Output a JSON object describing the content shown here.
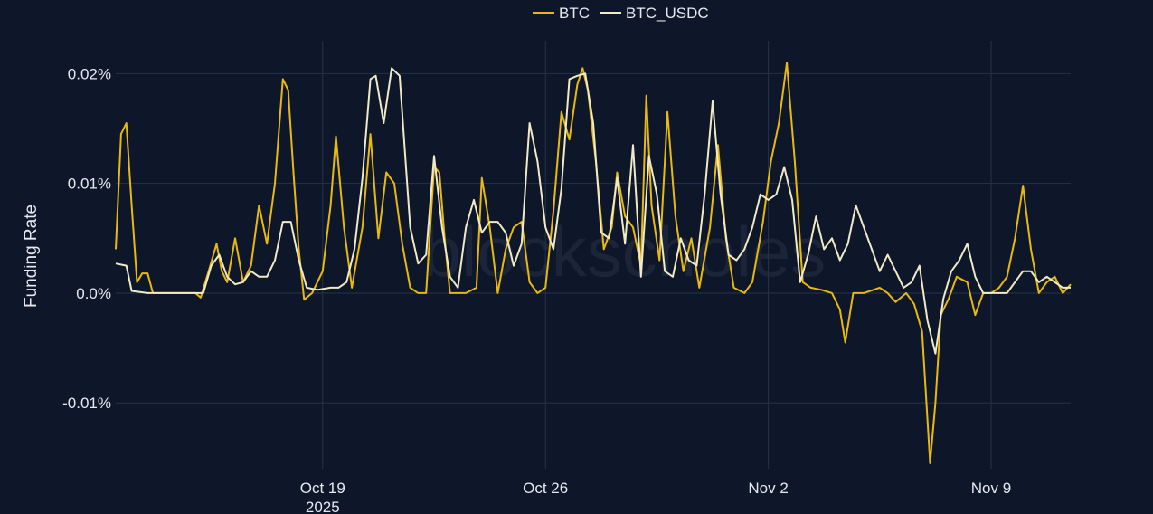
{
  "watermark": "blockscholes",
  "chart_data": {
    "type": "line",
    "title": "",
    "xlabel": "",
    "ylabel": "Funding Rate",
    "x_range": [
      "2025-10-12T12:00",
      "2025-11-11T12:00"
    ],
    "ylim": [
      -0.016,
      0.023
    ],
    "y_unit": "%",
    "y_ticks": [
      {
        "value": 0.02,
        "label": "0.02%"
      },
      {
        "value": 0.01,
        "label": "0.01%"
      },
      {
        "value": 0.0,
        "label": "0.0%"
      },
      {
        "value": -0.01,
        "label": "-0.01%"
      }
    ],
    "x_ticks": [
      {
        "value": "2025-10-19T00:00",
        "label": "Oct 19",
        "sublabel": "2025"
      },
      {
        "value": "2025-10-26T00:00",
        "label": "Oct 26",
        "sublabel": ""
      },
      {
        "value": "2025-11-02T00:00",
        "label": "Nov 2",
        "sublabel": ""
      },
      {
        "value": "2025-11-09T00:00",
        "label": "Nov 9",
        "sublabel": ""
      }
    ],
    "grid": true,
    "legend_position": "top-center",
    "series": [
      {
        "name": "BTC",
        "color": "#e8b90f",
        "points": [
          [
            "2025-10-12T12:00",
            0.004
          ],
          [
            "2025-10-12T16:00",
            0.0145
          ],
          [
            "2025-10-12T20:00",
            0.0155
          ],
          [
            "2025-10-13T00:00",
            0.008
          ],
          [
            "2025-10-13T04:00",
            0.001
          ],
          [
            "2025-10-13T08:00",
            0.0018
          ],
          [
            "2025-10-13T12:00",
            0.0018
          ],
          [
            "2025-10-13T16:00",
            0.0
          ],
          [
            "2025-10-14T00:00",
            0.0
          ],
          [
            "2025-10-14T12:00",
            0.0
          ],
          [
            "2025-10-15T00:00",
            0.0
          ],
          [
            "2025-10-15T04:00",
            -0.0004
          ],
          [
            "2025-10-15T10:00",
            0.002
          ],
          [
            "2025-10-15T16:00",
            0.0045
          ],
          [
            "2025-10-15T20:00",
            0.002
          ],
          [
            "2025-10-16T00:00",
            0.001
          ],
          [
            "2025-10-16T06:00",
            0.005
          ],
          [
            "2025-10-16T12:00",
            0.001
          ],
          [
            "2025-10-16T18:00",
            0.0025
          ],
          [
            "2025-10-17T00:00",
            0.008
          ],
          [
            "2025-10-17T06:00",
            0.0045
          ],
          [
            "2025-10-17T12:00",
            0.01
          ],
          [
            "2025-10-17T18:00",
            0.0195
          ],
          [
            "2025-10-17T22:00",
            0.0185
          ],
          [
            "2025-10-18T02:00",
            0.011
          ],
          [
            "2025-10-18T06:00",
            0.004
          ],
          [
            "2025-10-18T10:00",
            -0.0006
          ],
          [
            "2025-10-18T16:00",
            0.0
          ],
          [
            "2025-10-19T00:00",
            0.002
          ],
          [
            "2025-10-19T06:00",
            0.008
          ],
          [
            "2025-10-19T10:00",
            0.0143
          ],
          [
            "2025-10-19T16:00",
            0.006
          ],
          [
            "2025-10-19T22:00",
            0.0005
          ],
          [
            "2025-10-20T06:00",
            0.006
          ],
          [
            "2025-10-20T12:00",
            0.0145
          ],
          [
            "2025-10-20T18:00",
            0.005
          ],
          [
            "2025-10-21T00:00",
            0.011
          ],
          [
            "2025-10-21T06:00",
            0.01
          ],
          [
            "2025-10-21T12:00",
            0.0045
          ],
          [
            "2025-10-21T18:00",
            0.0005
          ],
          [
            "2025-10-22T00:00",
            0.0
          ],
          [
            "2025-10-22T06:00",
            0.0
          ],
          [
            "2025-10-22T12:00",
            0.0115
          ],
          [
            "2025-10-22T16:00",
            0.011
          ],
          [
            "2025-10-22T20:00",
            0.005
          ],
          [
            "2025-10-23T00:00",
            0.0
          ],
          [
            "2025-10-23T12:00",
            0.0
          ],
          [
            "2025-10-23T20:00",
            0.0005
          ],
          [
            "2025-10-24T00:00",
            0.0105
          ],
          [
            "2025-10-24T06:00",
            0.006
          ],
          [
            "2025-10-24T12:00",
            0.0
          ],
          [
            "2025-10-24T18:00",
            0.004
          ],
          [
            "2025-10-25T00:00",
            0.006
          ],
          [
            "2025-10-25T06:00",
            0.0065
          ],
          [
            "2025-10-25T12:00",
            0.001
          ],
          [
            "2025-10-25T18:00",
            0.0
          ],
          [
            "2025-10-26T00:00",
            0.0005
          ],
          [
            "2025-10-26T06:00",
            0.0075
          ],
          [
            "2025-10-26T12:00",
            0.0165
          ],
          [
            "2025-10-26T18:00",
            0.014
          ],
          [
            "2025-10-27T00:00",
            0.019
          ],
          [
            "2025-10-27T04:00",
            0.0205
          ],
          [
            "2025-10-27T08:00",
            0.0185
          ],
          [
            "2025-10-27T14:00",
            0.012
          ],
          [
            "2025-10-27T20:00",
            0.004
          ],
          [
            "2025-10-28T02:00",
            0.006
          ],
          [
            "2025-10-28T06:00",
            0.011
          ],
          [
            "2025-10-28T12:00",
            0.007
          ],
          [
            "2025-10-28T18:00",
            0.006
          ],
          [
            "2025-10-29T00:00",
            0.0025
          ],
          [
            "2025-10-29T04:00",
            0.018
          ],
          [
            "2025-10-29T08:00",
            0.008
          ],
          [
            "2025-10-29T14:00",
            0.003
          ],
          [
            "2025-10-29T20:00",
            0.0165
          ],
          [
            "2025-10-30T02:00",
            0.007
          ],
          [
            "2025-10-30T08:00",
            0.002
          ],
          [
            "2025-10-30T14:00",
            0.005
          ],
          [
            "2025-10-30T20:00",
            0.0005
          ],
          [
            "2025-10-31T04:00",
            0.006
          ],
          [
            "2025-10-31T10:00",
            0.0135
          ],
          [
            "2025-10-31T16:00",
            0.005
          ],
          [
            "2025-10-31T22:00",
            0.0005
          ],
          [
            "2025-11-01T06:00",
            0.0
          ],
          [
            "2025-11-01T12:00",
            0.001
          ],
          [
            "2025-11-01T20:00",
            0.0065
          ],
          [
            "2025-11-02T02:00",
            0.012
          ],
          [
            "2025-11-02T08:00",
            0.0155
          ],
          [
            "2025-11-02T14:00",
            0.021
          ],
          [
            "2025-11-02T20:00",
            0.012
          ],
          [
            "2025-11-03T02:00",
            0.001
          ],
          [
            "2025-11-03T08:00",
            0.0005
          ],
          [
            "2025-11-03T16:00",
            0.0003
          ],
          [
            "2025-11-04T00:00",
            0.0
          ],
          [
            "2025-11-04T06:00",
            -0.0015
          ],
          [
            "2025-11-04T10:00",
            -0.0045
          ],
          [
            "2025-11-04T16:00",
            0.0
          ],
          [
            "2025-11-05T00:00",
            0.0
          ],
          [
            "2025-11-05T12:00",
            0.0005
          ],
          [
            "2025-11-05T18:00",
            0.0
          ],
          [
            "2025-11-06T00:00",
            -0.0008
          ],
          [
            "2025-11-06T08:00",
            0.0
          ],
          [
            "2025-11-06T14:00",
            -0.001
          ],
          [
            "2025-11-06T20:00",
            -0.0035
          ],
          [
            "2025-11-07T02:00",
            -0.0155
          ],
          [
            "2025-11-07T06:00",
            -0.01
          ],
          [
            "2025-11-07T10:00",
            -0.002
          ],
          [
            "2025-11-07T16:00",
            -0.0005
          ],
          [
            "2025-11-07T22:00",
            0.0015
          ],
          [
            "2025-11-08T06:00",
            0.001
          ],
          [
            "2025-11-08T12:00",
            -0.002
          ],
          [
            "2025-11-08T18:00",
            0.0
          ],
          [
            "2025-11-09T00:00",
            0.0
          ],
          [
            "2025-11-09T06:00",
            0.0005
          ],
          [
            "2025-11-09T12:00",
            0.0015
          ],
          [
            "2025-11-09T18:00",
            0.005
          ],
          [
            "2025-11-10T00:00",
            0.0098
          ],
          [
            "2025-11-10T06:00",
            0.004
          ],
          [
            "2025-11-10T12:00",
            0.0
          ],
          [
            "2025-11-10T18:00",
            0.001
          ],
          [
            "2025-11-11T00:00",
            0.0015
          ],
          [
            "2025-11-11T06:00",
            0.0
          ],
          [
            "2025-11-11T12:00",
            0.0008
          ]
        ]
      },
      {
        "name": "BTC_USDC",
        "color": "#f1eac6",
        "points": [
          [
            "2025-10-12T12:00",
            0.0027
          ],
          [
            "2025-10-12T20:00",
            0.0025
          ],
          [
            "2025-10-13T00:00",
            0.0002
          ],
          [
            "2025-10-13T12:00",
            0.0
          ],
          [
            "2025-10-14T12:00",
            0.0
          ],
          [
            "2025-10-15T06:00",
            0.0
          ],
          [
            "2025-10-15T12:00",
            0.0025
          ],
          [
            "2025-10-15T18:00",
            0.0035
          ],
          [
            "2025-10-16T00:00",
            0.0015
          ],
          [
            "2025-10-16T06:00",
            0.0008
          ],
          [
            "2025-10-16T12:00",
            0.001
          ],
          [
            "2025-10-16T18:00",
            0.002
          ],
          [
            "2025-10-17T00:00",
            0.0015
          ],
          [
            "2025-10-17T06:00",
            0.0015
          ],
          [
            "2025-10-17T12:00",
            0.003
          ],
          [
            "2025-10-17T18:00",
            0.0065
          ],
          [
            "2025-10-18T00:00",
            0.0065
          ],
          [
            "2025-10-18T06:00",
            0.003
          ],
          [
            "2025-10-18T12:00",
            0.0005
          ],
          [
            "2025-10-18T20:00",
            0.0003
          ],
          [
            "2025-10-19T06:00",
            0.0005
          ],
          [
            "2025-10-19T12:00",
            0.0005
          ],
          [
            "2025-10-19T18:00",
            0.001
          ],
          [
            "2025-10-20T00:00",
            0.004
          ],
          [
            "2025-10-20T06:00",
            0.0105
          ],
          [
            "2025-10-20T12:00",
            0.0195
          ],
          [
            "2025-10-20T16:00",
            0.0198
          ],
          [
            "2025-10-20T22:00",
            0.0155
          ],
          [
            "2025-10-21T04:00",
            0.0205
          ],
          [
            "2025-10-21T10:00",
            0.0198
          ],
          [
            "2025-10-21T18:00",
            0.006
          ],
          [
            "2025-10-22T00:00",
            0.0027
          ],
          [
            "2025-10-22T06:00",
            0.0035
          ],
          [
            "2025-10-22T12:00",
            0.0125
          ],
          [
            "2025-10-22T18:00",
            0.006
          ],
          [
            "2025-10-23T00:00",
            0.0015
          ],
          [
            "2025-10-23T06:00",
            0.0005
          ],
          [
            "2025-10-23T12:00",
            0.006
          ],
          [
            "2025-10-23T18:00",
            0.0085
          ],
          [
            "2025-10-24T00:00",
            0.0055
          ],
          [
            "2025-10-24T06:00",
            0.0065
          ],
          [
            "2025-10-24T12:00",
            0.0065
          ],
          [
            "2025-10-24T18:00",
            0.0055
          ],
          [
            "2025-10-25T00:00",
            0.0025
          ],
          [
            "2025-10-25T06:00",
            0.0045
          ],
          [
            "2025-10-25T12:00",
            0.0155
          ],
          [
            "2025-10-25T18:00",
            0.012
          ],
          [
            "2025-10-26T00:00",
            0.006
          ],
          [
            "2025-10-26T06:00",
            0.004
          ],
          [
            "2025-10-26T12:00",
            0.0095
          ],
          [
            "2025-10-26T18:00",
            0.0195
          ],
          [
            "2025-10-27T00:00",
            0.0198
          ],
          [
            "2025-10-27T06:00",
            0.02
          ],
          [
            "2025-10-27T12:00",
            0.0155
          ],
          [
            "2025-10-27T18:00",
            0.0055
          ],
          [
            "2025-10-28T00:00",
            0.005
          ],
          [
            "2025-10-28T06:00",
            0.0105
          ],
          [
            "2025-10-28T12:00",
            0.0045
          ],
          [
            "2025-10-28T18:00",
            0.0135
          ],
          [
            "2025-10-29T00:00",
            0.0015
          ],
          [
            "2025-10-29T06:00",
            0.0125
          ],
          [
            "2025-10-29T12:00",
            0.009
          ],
          [
            "2025-10-29T18:00",
            0.002
          ],
          [
            "2025-10-30T00:00",
            0.0015
          ],
          [
            "2025-10-30T06:00",
            0.005
          ],
          [
            "2025-10-30T12:00",
            0.003
          ],
          [
            "2025-10-30T18:00",
            0.0025
          ],
          [
            "2025-10-31T00:00",
            0.009
          ],
          [
            "2025-10-31T06:00",
            0.0175
          ],
          [
            "2025-10-31T12:00",
            0.009
          ],
          [
            "2025-10-31T18:00",
            0.0035
          ],
          [
            "2025-11-01T00:00",
            0.003
          ],
          [
            "2025-11-01T06:00",
            0.004
          ],
          [
            "2025-11-01T12:00",
            0.006
          ],
          [
            "2025-11-01T18:00",
            0.009
          ],
          [
            "2025-11-02T00:00",
            0.0085
          ],
          [
            "2025-11-02T06:00",
            0.009
          ],
          [
            "2025-11-02T12:00",
            0.0115
          ],
          [
            "2025-11-02T18:00",
            0.0085
          ],
          [
            "2025-11-03T00:00",
            0.001
          ],
          [
            "2025-11-03T06:00",
            0.0035
          ],
          [
            "2025-11-03T12:00",
            0.007
          ],
          [
            "2025-11-03T18:00",
            0.004
          ],
          [
            "2025-11-04T00:00",
            0.005
          ],
          [
            "2025-11-04T06:00",
            0.003
          ],
          [
            "2025-11-04T12:00",
            0.0045
          ],
          [
            "2025-11-04T18:00",
            0.008
          ],
          [
            "2025-11-05T00:00",
            0.006
          ],
          [
            "2025-11-05T06:00",
            0.004
          ],
          [
            "2025-11-05T12:00",
            0.002
          ],
          [
            "2025-11-05T18:00",
            0.0035
          ],
          [
            "2025-11-06T00:00",
            0.002
          ],
          [
            "2025-11-06T06:00",
            0.0005
          ],
          [
            "2025-11-06T12:00",
            0.001
          ],
          [
            "2025-11-06T18:00",
            0.0025
          ],
          [
            "2025-11-07T00:00",
            -0.0025
          ],
          [
            "2025-11-07T06:00",
            -0.0055
          ],
          [
            "2025-11-07T12:00",
            -0.0005
          ],
          [
            "2025-11-07T18:00",
            0.002
          ],
          [
            "2025-11-08T00:00",
            0.003
          ],
          [
            "2025-11-08T06:00",
            0.0045
          ],
          [
            "2025-11-08T12:00",
            0.0015
          ],
          [
            "2025-11-08T18:00",
            0.0
          ],
          [
            "2025-11-09T06:00",
            0.0
          ],
          [
            "2025-11-09T12:00",
            0.0
          ],
          [
            "2025-11-09T18:00",
            0.001
          ],
          [
            "2025-11-10T00:00",
            0.002
          ],
          [
            "2025-11-10T06:00",
            0.002
          ],
          [
            "2025-11-10T12:00",
            0.001
          ],
          [
            "2025-11-10T18:00",
            0.0015
          ],
          [
            "2025-11-11T00:00",
            0.001
          ],
          [
            "2025-11-11T06:00",
            0.0005
          ],
          [
            "2025-11-11T12:00",
            0.0005
          ]
        ]
      }
    ]
  }
}
